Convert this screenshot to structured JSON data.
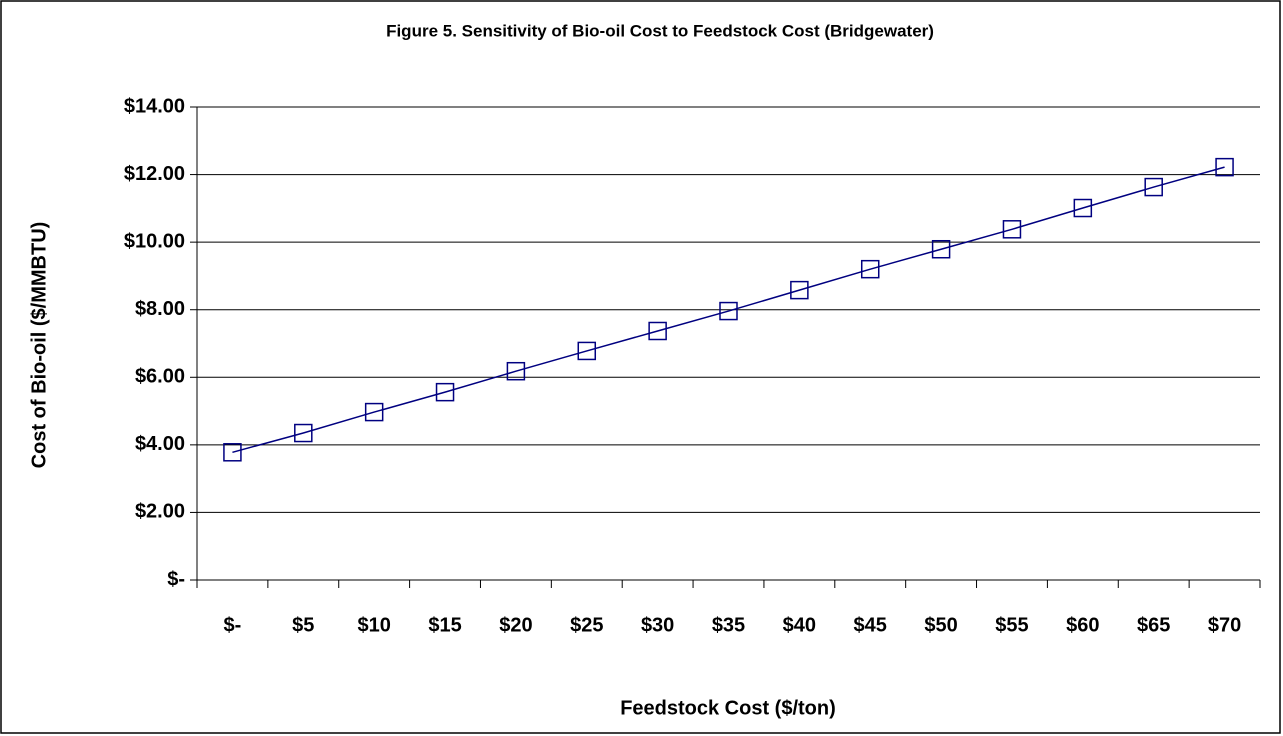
{
  "chart_data": {
    "type": "line",
    "title": "Figure 5.   Sensitivity of Bio-oil Cost to Feedstock Cost (Bridgewater)",
    "x_label": "Feedstock Cost ($/ton)",
    "y_label": "Cost of Bio-oil ($/MMBTU)",
    "categories": [
      "$-",
      "$5",
      "$10",
      "$15",
      "$20",
      "$25",
      "$30",
      "$35",
      "$40",
      "$45",
      "$50",
      "$55",
      "$60",
      "$65",
      "$70"
    ],
    "series": [
      {
        "color": "#000080",
        "values": [
          3.78,
          4.35,
          4.97,
          5.56,
          6.18,
          6.78,
          7.37,
          7.96,
          8.58,
          9.2,
          9.79,
          10.38,
          11.01,
          11.63,
          12.22
        ]
      }
    ],
    "ylim": [
      0,
      14
    ],
    "yticks": [
      {
        "value": 0,
        "label": "$-"
      },
      {
        "value": 2,
        "label": "$2.00"
      },
      {
        "value": 4,
        "label": "$4.00"
      },
      {
        "value": 6,
        "label": "$6.00"
      },
      {
        "value": 8,
        "label": "$8.00"
      },
      {
        "value": 10,
        "label": "$10.00"
      },
      {
        "value": 12,
        "label": "$12.00"
      },
      {
        "value": 14,
        "label": "$14.00"
      }
    ],
    "grid": true
  }
}
